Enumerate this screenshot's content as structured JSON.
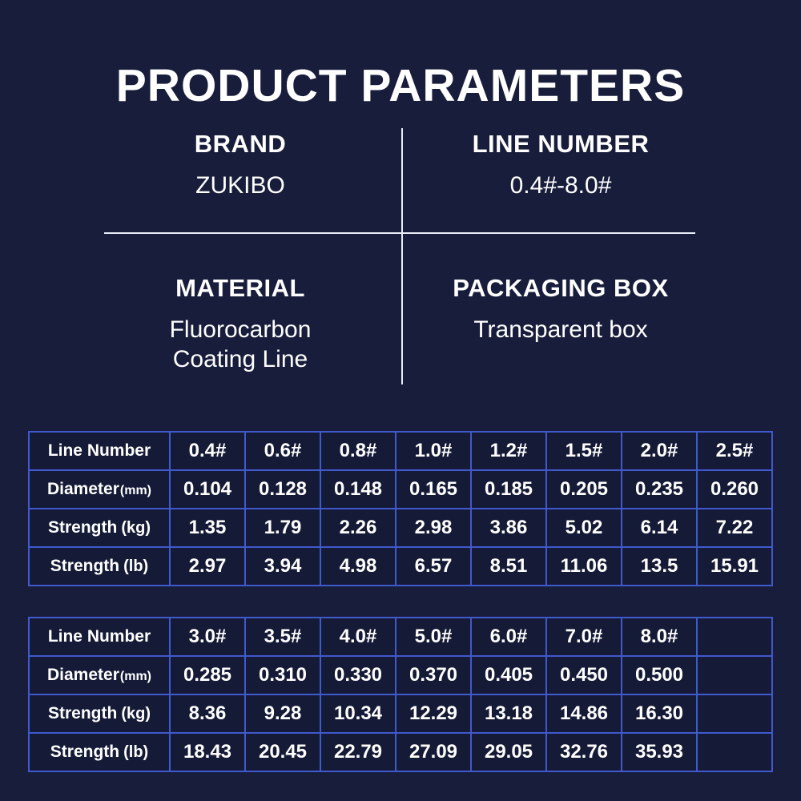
{
  "title": "PRODUCT PARAMETERS",
  "specs": [
    {
      "id": "brand",
      "label": "BRAND",
      "value": "ZUKIBO"
    },
    {
      "id": "line-number",
      "label": "LINE NUMBER",
      "value": "0.4#-8.0#"
    },
    {
      "id": "material",
      "label": "MATERIAL",
      "value": "Fluorocarbon\nCoating Line"
    },
    {
      "id": "packaging",
      "label": "PACKAGING BOX",
      "value": "Transparent box"
    }
  ],
  "tables": [
    {
      "rows": [
        {
          "name": "Line Number",
          "unit": "",
          "unit_small": false,
          "values": [
            "0.4#",
            "0.6#",
            "0.8#",
            "1.0#",
            "1.2#",
            "1.5#",
            "2.0#",
            "2.5#"
          ]
        },
        {
          "name": "Diameter",
          "unit": "(mm)",
          "unit_small": true,
          "values": [
            "0.104",
            "0.128",
            "0.148",
            "0.165",
            "0.185",
            "0.205",
            "0.235",
            "0.260"
          ]
        },
        {
          "name": "Strength",
          "unit": "(kg)",
          "unit_small": false,
          "values": [
            "1.35",
            "1.79",
            "2.26",
            "2.98",
            "3.86",
            "5.02",
            "6.14",
            "7.22"
          ]
        },
        {
          "name": "Strength",
          "unit": "(lb)",
          "unit_small": false,
          "values": [
            "2.97",
            "3.94",
            "4.98",
            "6.57",
            "8.51",
            "11.06",
            "13.5",
            "15.91"
          ]
        }
      ]
    },
    {
      "rows": [
        {
          "name": "Line Number",
          "unit": "",
          "unit_small": false,
          "values": [
            "3.0#",
            "3.5#",
            "4.0#",
            "5.0#",
            "6.0#",
            "7.0#",
            "8.0#",
            ""
          ]
        },
        {
          "name": "Diameter",
          "unit": "(mm)",
          "unit_small": true,
          "values": [
            "0.285",
            "0.310",
            "0.330",
            "0.370",
            "0.405",
            "0.450",
            "0.500",
            ""
          ]
        },
        {
          "name": "Strength",
          "unit": "(kg)",
          "unit_small": false,
          "values": [
            "8.36",
            "9.28",
            "10.34",
            "12.29",
            "13.18",
            "14.86",
            "16.30",
            ""
          ]
        },
        {
          "name": "Strength",
          "unit": "(lb)",
          "unit_small": false,
          "values": [
            "18.43",
            "20.45",
            "22.79",
            "27.09",
            "29.05",
            "32.76",
            "35.93",
            ""
          ]
        }
      ]
    }
  ],
  "colors": {
    "background": "#181d3c",
    "cell_background": "#151a37",
    "table_border": "#4059cc",
    "divider": "#e9edf5",
    "text": "#ffffff"
  }
}
